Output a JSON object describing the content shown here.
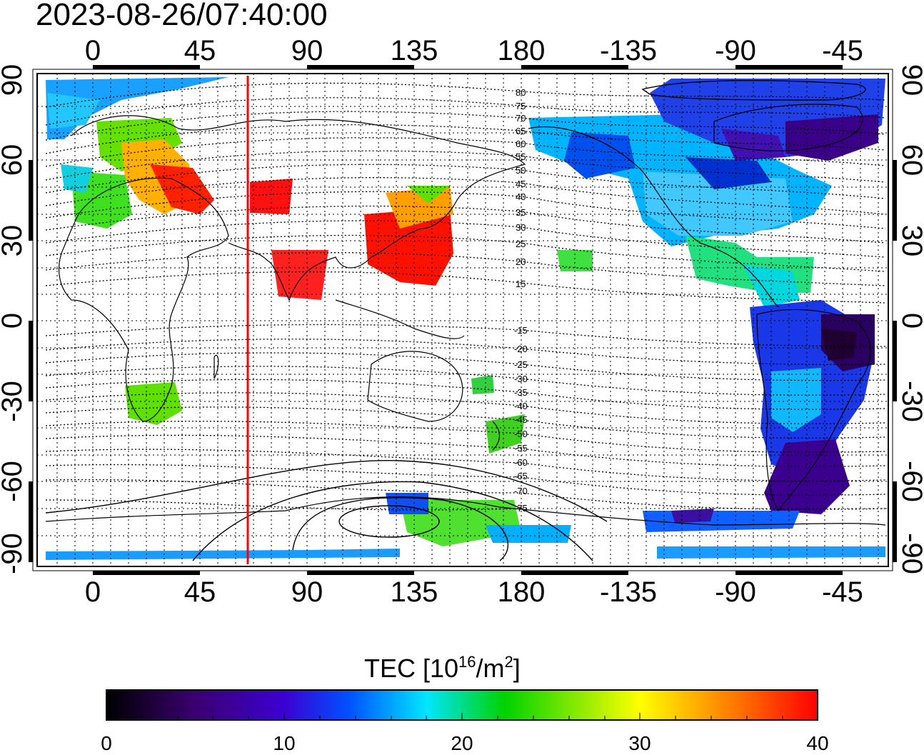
{
  "timestamp": "2023-08-26/07:40:00",
  "map": {
    "lon_ticks": [
      "0",
      "45",
      "90",
      "135",
      "180",
      "-135",
      "-90",
      "-45"
    ],
    "lat_ticks": [
      "90",
      "60",
      "30",
      "0",
      "-30",
      "-60",
      "-90"
    ],
    "sun_meridian_color": "#ff0000",
    "contour_labels_north": [
      "80",
      "75",
      "70",
      "65",
      "60",
      "55",
      "50",
      "45",
      "40",
      "35",
      "30",
      "25",
      "20",
      "15"
    ],
    "contour_labels_south": [
      "-15",
      "-20",
      "-25",
      "-30",
      "-35",
      "-40",
      "-45",
      "-50",
      "-55",
      "-60",
      "-65",
      "-70",
      "-75"
    ]
  },
  "colorbar": {
    "title_prefix": "TEC  [10",
    "title_exp1": "16",
    "title_mid": "/m",
    "title_exp2": "2",
    "title_suffix": "]",
    "ticks": [
      "0",
      "10",
      "20",
      "30",
      "40"
    ],
    "colors": [
      "#000000",
      "#3a0070",
      "#3c00d2",
      "#0050ff",
      "#00e6ff",
      "#00d200",
      "#ffff00",
      "#ff8000",
      "#ff0000"
    ]
  }
}
